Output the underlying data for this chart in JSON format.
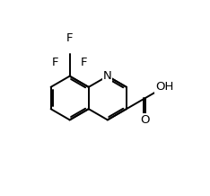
{
  "background": "#ffffff",
  "line_color": "#000000",
  "bond_width": 1.4,
  "font_size": 9.5,
  "xlim": [
    -4.0,
    5.5
  ],
  "ylim": [
    -4.2,
    3.2
  ]
}
